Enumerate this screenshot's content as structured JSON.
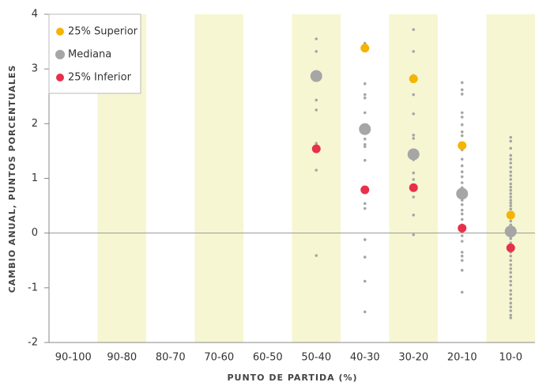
{
  "chart_data": {
    "type": "scatter",
    "y_label": "CAMBIO ANUAL, PUNTOS PORCENTUALES",
    "x_label": "PUNTO DE PARTIDA (%)",
    "categories": [
      "90-100",
      "90-80",
      "80-70",
      "70-60",
      "60-50",
      "50-40",
      "40-30",
      "30-20",
      "20-10",
      "10-0"
    ],
    "shaded_color": "#f6f6d2",
    "ylim": [
      -2,
      4
    ],
    "yticks": [
      -2,
      -1,
      0,
      1,
      2,
      3,
      4
    ],
    "observations_color": "#a6a6a6",
    "observations": [
      [],
      [],
      [],
      [],
      [],
      [
        3.55,
        3.32,
        2.43,
        2.25,
        1.64,
        1.15,
        -0.41
      ],
      [
        3.47,
        2.73,
        2.53,
        2.47,
        2.2,
        1.93,
        1.72,
        1.62,
        1.58,
        1.33,
        0.54,
        0.45,
        -0.12,
        -0.44,
        -0.88,
        -1.44
      ],
      [
        3.72,
        3.32,
        2.88,
        2.53,
        2.18,
        1.79,
        1.73,
        1.47,
        1.34,
        1.1,
        0.98,
        0.86,
        0.66,
        0.33,
        -0.03
      ],
      [
        2.75,
        2.62,
        2.54,
        2.2,
        2.12,
        1.98,
        1.85,
        1.78,
        1.65,
        1.52,
        1.35,
        1.23,
        1.12,
        1.03,
        0.92,
        0.83,
        0.75,
        0.6,
        0.52,
        0.42,
        0.35,
        0.25,
        0.15,
        0.05,
        -0.05,
        -0.15,
        -0.35,
        -0.42,
        -0.5,
        -0.68,
        -1.08
      ],
      [
        1.75,
        1.68,
        1.55,
        1.42,
        1.35,
        1.28,
        1.2,
        1.12,
        1.05,
        0.98,
        0.9,
        0.84,
        0.78,
        0.72,
        0.66,
        0.6,
        0.55,
        0.5,
        0.44,
        0.38,
        0.3,
        0.22,
        0.15,
        0.08,
        -0.02,
        -0.1,
        -0.18,
        -0.25,
        -0.35,
        -0.42,
        -0.5,
        -0.58,
        -0.65,
        -0.72,
        -0.8,
        -0.88,
        -0.95,
        -1.05,
        -1.12,
        -1.2,
        -1.28,
        -1.35,
        -1.42,
        -1.5,
        -1.55
      ]
    ],
    "series": [
      {
        "name": "25% Superior",
        "color": "#f5b400",
        "values": [
          null,
          null,
          null,
          null,
          null,
          null,
          3.38,
          2.82,
          1.6,
          0.33
        ]
      },
      {
        "name": "Mediana",
        "color": "#a6a6a6",
        "values": [
          null,
          null,
          null,
          null,
          null,
          2.87,
          1.9,
          1.44,
          0.72,
          0.03
        ]
      },
      {
        "name": "25% Inferior",
        "color": "#e8304a",
        "values": [
          null,
          null,
          null,
          null,
          null,
          1.54,
          0.79,
          0.83,
          0.09,
          -0.27
        ]
      }
    ]
  }
}
